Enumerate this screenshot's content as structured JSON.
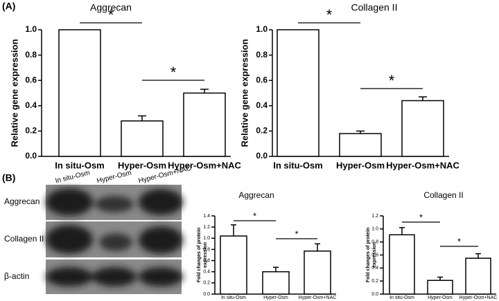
{
  "panel_labels": [
    "(A)",
    "(B)"
  ],
  "blot": {
    "lanes": [
      "In situ-Osm",
      "Hyper-Osm",
      "Hyper-Osm+NAC"
    ],
    "rows": [
      "Aggrecan",
      "Collagen II",
      "β-actin"
    ]
  },
  "chart_data": [
    {
      "type": "bar",
      "title": "Aggrecan",
      "ylabel": "Relative gene expression",
      "color": "#ffffff",
      "categories": [
        "In situ-Osm",
        "Hyper-Osm",
        "Hyper-Osm+NAC"
      ],
      "values": [
        1.0,
        0.28,
        0.5
      ],
      "errors": [
        null,
        0.04,
        0.03
      ],
      "ylim": [
        0,
        1.0
      ],
      "yticks": [
        {
          "value": 0,
          "label": "0.0"
        },
        {
          "value": 0.2,
          "label": "0.2"
        },
        {
          "value": 0.4,
          "label": "0.4"
        },
        {
          "value": 0.6,
          "label": "0.6"
        },
        {
          "value": 0.8,
          "label": "0.8"
        },
        {
          "value": 1.0,
          "label": "1.0"
        }
      ],
      "significance": [
        {
          "label": "*",
          "pair": [
            "In situ-Osm",
            "Hyper-Osm"
          ]
        },
        {
          "label": "*",
          "pair": [
            "Hyper-Osm",
            "Hyper-Osm+NAC"
          ]
        }
      ]
    },
    {
      "type": "bar",
      "title": "Collagen II",
      "ylabel": "Relative gene expression",
      "color": "#ffffff",
      "categories": [
        "In situ-Osm",
        "Hyper-Osm",
        "Hyper-Osm+NAC"
      ],
      "values": [
        1.0,
        0.18,
        0.44
      ],
      "errors": [
        null,
        0.02,
        0.03
      ],
      "ylim": [
        0,
        1.0
      ],
      "yticks": [
        {
          "value": 0,
          "label": "0.0"
        },
        {
          "value": 0.2,
          "label": "0.2"
        },
        {
          "value": 0.4,
          "label": "0.4"
        },
        {
          "value": 0.6,
          "label": "0.6"
        },
        {
          "value": 0.8,
          "label": "0.8"
        },
        {
          "value": 1.0,
          "label": "1.0"
        }
      ],
      "significance": [
        {
          "label": "*",
          "pair": [
            "In situ-Osm",
            "Hyper-Osm"
          ]
        },
        {
          "label": "*",
          "pair": [
            "Hyper-Osm",
            "Hyper-Osm+NAC"
          ]
        }
      ]
    },
    {
      "type": "bar",
      "title": "Aggrecan",
      "ylabel": [
        "Fold changes of protein",
        "expression"
      ],
      "color": "#ffffff",
      "categories": [
        "In situ-Osm",
        "Hyper-Osm",
        "Hyper-Osm+NAC"
      ],
      "values": [
        1.04,
        0.4,
        0.77
      ],
      "errors": [
        0.2,
        0.08,
        0.13
      ],
      "ylim": [
        0,
        1.4
      ],
      "yticks": [
        {
          "value": 0,
          "label": "0.0"
        },
        {
          "value": 0.2,
          "label": "0.2"
        },
        {
          "value": 0.4,
          "label": "0.4"
        },
        {
          "value": 0.6,
          "label": "0.6"
        },
        {
          "value": 0.8,
          "label": "0.8"
        },
        {
          "value": 1.0,
          "label": "1.0"
        },
        {
          "value": 1.2,
          "label": "1.2"
        },
        {
          "value": 1.4,
          "label": "1.4"
        }
      ],
      "significance": [
        {
          "label": "*",
          "pair": [
            "In situ-Osm",
            "Hyper-Osm"
          ]
        },
        {
          "label": "*",
          "pair": [
            "Hyper-Osm",
            "Hyper-Osm+NAC"
          ]
        }
      ]
    },
    {
      "type": "bar",
      "title": "Collagen II",
      "ylabel": [
        "Fold changes of protein",
        "expression"
      ],
      "color": "#ffffff",
      "categories": [
        "In situ-Osm",
        "Hyper-Osm",
        "Hyper-Osm+NAC"
      ],
      "values": [
        0.91,
        0.21,
        0.55
      ],
      "errors": [
        0.11,
        0.05,
        0.07
      ],
      "ylim": [
        0,
        1.2
      ],
      "yticks": [
        {
          "value": 0,
          "label": "0.0"
        },
        {
          "value": 0.2,
          "label": "0.2"
        },
        {
          "value": 0.4,
          "label": "0.4"
        },
        {
          "value": 0.6,
          "label": "0.6"
        },
        {
          "value": 0.8,
          "label": "0.8"
        },
        {
          "value": 1.0,
          "label": "1.0"
        },
        {
          "value": 1.2,
          "label": "1.2"
        }
      ],
      "significance": [
        {
          "label": "*",
          "pair": [
            "In situ-Osm",
            "Hyper-Osm"
          ]
        },
        {
          "label": "*",
          "pair": [
            "Hyper-Osm",
            "Hyper-Osm+NAC"
          ]
        }
      ]
    }
  ]
}
